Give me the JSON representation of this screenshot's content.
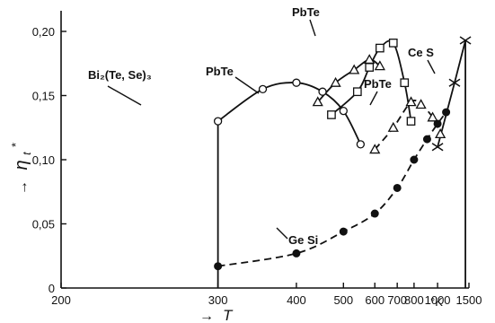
{
  "colors": {
    "ink": "#111111",
    "background": "#ffffff"
  },
  "chart_data": {
    "type": "line",
    "x_scale": "reciprocal",
    "y_axis": {
      "label_main": "η",
      "label_sub": "t",
      "label_sup": "*",
      "arrow": "→",
      "range": [
        0,
        0.21
      ],
      "ticks": [
        {
          "value": 0,
          "label": "0"
        },
        {
          "value": 0.05,
          "label": "0,05"
        },
        {
          "value": 0.1,
          "label": "0,10"
        },
        {
          "value": 0.15,
          "label": "0,15"
        },
        {
          "value": 0.2,
          "label": "0,20"
        }
      ]
    },
    "x_axis": {
      "label": "T",
      "arrow": "→",
      "unit": "°K",
      "range": [
        200,
        1500
      ],
      "ticks": [
        {
          "value": 200,
          "label": "200"
        },
        {
          "value": 300,
          "label": "300"
        },
        {
          "value": 400,
          "label": "400"
        },
        {
          "value": 500,
          "label": "500"
        },
        {
          "value": 600,
          "label": "600"
        },
        {
          "value": 700,
          "label": "700"
        },
        {
          "value": 800,
          "label": "800"
        },
        {
          "value": 1000,
          "label": "1000"
        },
        {
          "value": 1500,
          "label": "1500"
        }
      ]
    },
    "reference_lines": [
      {
        "x": 300,
        "from": 0,
        "to": 0.13
      },
      {
        "x": 1420,
        "from": 0,
        "to": 0.193
      }
    ],
    "series": [
      {
        "label_text": "Bi₂(Te, Se)₃",
        "marker": "open-circle",
        "style": "solid",
        "points": [
          {
            "x": 300,
            "y": 0.13
          },
          {
            "x": 350,
            "y": 0.155
          },
          {
            "x": 400,
            "y": 0.16
          },
          {
            "x": 450,
            "y": 0.153
          },
          {
            "x": 500,
            "y": 0.138
          },
          {
            "x": 550,
            "y": 0.112
          }
        ]
      },
      {
        "label_text": "PbTe",
        "marker": "open-triangle",
        "style": "solid",
        "points": [
          {
            "x": 440,
            "y": 0.145
          },
          {
            "x": 480,
            "y": 0.16
          },
          {
            "x": 530,
            "y": 0.17
          },
          {
            "x": 580,
            "y": 0.178
          },
          {
            "x": 620,
            "y": 0.173
          }
        ]
      },
      {
        "label_text": "PbTe",
        "marker": "open-square",
        "style": "solid",
        "points": [
          {
            "x": 470,
            "y": 0.135
          },
          {
            "x": 540,
            "y": 0.153
          },
          {
            "x": 580,
            "y": 0.172
          },
          {
            "x": 620,
            "y": 0.187
          },
          {
            "x": 680,
            "y": 0.191
          },
          {
            "x": 740,
            "y": 0.16
          },
          {
            "x": 780,
            "y": 0.13
          }
        ]
      },
      {
        "label_text": "PbTe",
        "marker": "open-triangle",
        "style": "dashed",
        "points": [
          {
            "x": 600,
            "y": 0.108
          },
          {
            "x": 680,
            "y": 0.125
          },
          {
            "x": 780,
            "y": 0.145
          },
          {
            "x": 850,
            "y": 0.143
          },
          {
            "x": 950,
            "y": 0.133
          },
          {
            "x": 1030,
            "y": 0.12
          }
        ]
      },
      {
        "label_text": "Ge Si",
        "marker": "filled-circle",
        "style": "dashed",
        "points": [
          {
            "x": 300,
            "y": 0.017
          },
          {
            "x": 400,
            "y": 0.027
          },
          {
            "x": 500,
            "y": 0.044
          },
          {
            "x": 600,
            "y": 0.058
          },
          {
            "x": 700,
            "y": 0.078
          },
          {
            "x": 800,
            "y": 0.1
          },
          {
            "x": 900,
            "y": 0.116
          },
          {
            "x": 1000,
            "y": 0.128
          },
          {
            "x": 1100,
            "y": 0.137
          }
        ]
      },
      {
        "label_text": "Ce S",
        "marker": "cross",
        "style": "solid",
        "points": [
          {
            "x": 1000,
            "y": 0.11
          },
          {
            "x": 1220,
            "y": 0.16
          },
          {
            "x": 1420,
            "y": 0.193
          }
        ]
      }
    ]
  }
}
